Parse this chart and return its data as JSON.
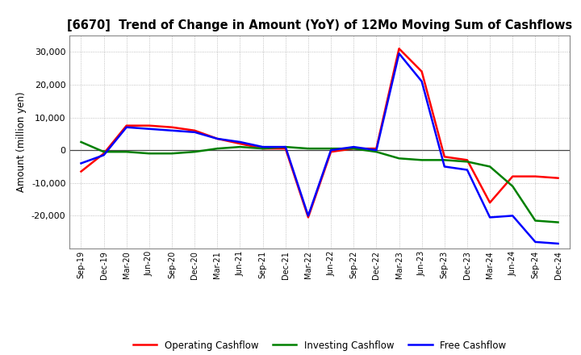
{
  "title": "[6670]  Trend of Change in Amount (YoY) of 12Mo Moving Sum of Cashflows",
  "ylabel": "Amount (million yen)",
  "x_labels": [
    "Sep-19",
    "Dec-19",
    "Mar-20",
    "Jun-20",
    "Sep-20",
    "Dec-20",
    "Mar-21",
    "Jun-21",
    "Sep-21",
    "Dec-21",
    "Mar-22",
    "Jun-22",
    "Sep-22",
    "Dec-22",
    "Mar-23",
    "Jun-23",
    "Sep-23",
    "Dec-23",
    "Mar-24",
    "Jun-24",
    "Sep-24",
    "Dec-24"
  ],
  "operating": [
    -6500,
    -1000,
    7500,
    7500,
    7000,
    6000,
    3500,
    2000,
    500,
    500,
    -20500,
    -500,
    500,
    500,
    31000,
    24000,
    -2000,
    -3000,
    -16000,
    -8000,
    -8000,
    -8500
  ],
  "investing": [
    2500,
    -500,
    -500,
    -1000,
    -1000,
    -500,
    500,
    1000,
    500,
    1000,
    500,
    500,
    500,
    -500,
    -2500,
    -3000,
    -3000,
    -3500,
    -5000,
    -11000,
    -21500,
    -22000
  ],
  "free": [
    -4000,
    -1500,
    7000,
    6500,
    6000,
    5500,
    3500,
    2500,
    1000,
    1000,
    -20000,
    0,
    1000,
    0,
    29500,
    21000,
    -5000,
    -6000,
    -20500,
    -20000,
    -28000,
    -28500
  ],
  "operating_color": "#ff0000",
  "investing_color": "#008000",
  "free_color": "#0000ff",
  "ylim": [
    -30000,
    35000
  ],
  "yticks": [
    -20000,
    -10000,
    0,
    10000,
    20000,
    30000
  ],
  "background_color": "#ffffff",
  "grid_color": "#b0b0b0",
  "line_width": 1.8,
  "legend_labels": [
    "Operating Cashflow",
    "Investing Cashflow",
    "Free Cashflow"
  ]
}
